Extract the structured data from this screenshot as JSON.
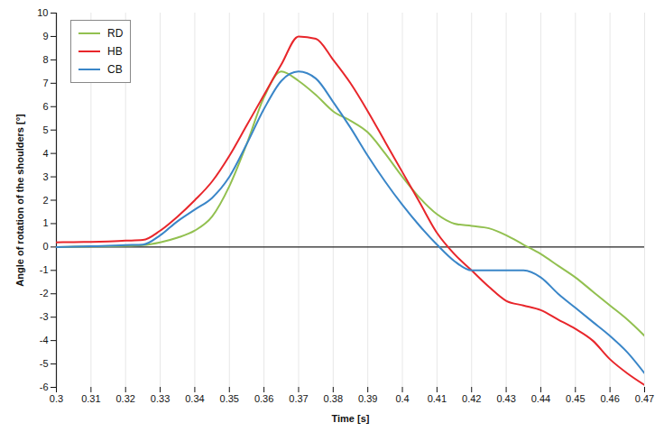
{
  "chart_data": {
    "type": "line",
    "x_label": "Time [s]",
    "y_label": "Angle of rotation of the shoulders [°]",
    "x": [
      0.3,
      0.305,
      0.31,
      0.315,
      0.32,
      0.325,
      0.33,
      0.335,
      0.34,
      0.345,
      0.35,
      0.355,
      0.36,
      0.365,
      0.37,
      0.375,
      0.38,
      0.385,
      0.39,
      0.395,
      0.4,
      0.405,
      0.41,
      0.415,
      0.42,
      0.425,
      0.43,
      0.435,
      0.44,
      0.445,
      0.45,
      0.455,
      0.46,
      0.465,
      0.47
    ],
    "series": [
      {
        "name": "RD",
        "color": "#92c050",
        "values": [
          0.0,
          0.01,
          0.02,
          0.03,
          0.05,
          0.08,
          0.2,
          0.4,
          0.7,
          1.3,
          2.6,
          4.4,
          6.4,
          7.5,
          7.1,
          6.5,
          5.8,
          5.4,
          4.9,
          4.0,
          3.0,
          2.1,
          1.4,
          1.0,
          0.9,
          0.8,
          0.5,
          0.1,
          -0.3,
          -0.8,
          -1.3,
          -1.9,
          -2.5,
          -3.1,
          -3.8
        ]
      },
      {
        "name": "HB",
        "color": "#e8262b",
        "values": [
          0.2,
          0.21,
          0.22,
          0.24,
          0.27,
          0.3,
          0.7,
          1.3,
          2.0,
          2.8,
          3.9,
          5.2,
          6.5,
          7.8,
          9.0,
          8.9,
          8.0,
          7.0,
          5.8,
          4.5,
          3.2,
          1.9,
          0.6,
          -0.3,
          -1.0,
          -1.7,
          -2.3,
          -2.5,
          -2.7,
          -3.1,
          -3.5,
          -4.0,
          -4.8,
          -5.4,
          -5.9
        ]
      },
      {
        "name": "CB",
        "color": "#3a86c8",
        "values": [
          0.0,
          0.01,
          0.03,
          0.05,
          0.08,
          0.1,
          0.5,
          1.1,
          1.6,
          2.1,
          3.0,
          4.4,
          5.9,
          7.1,
          7.5,
          7.2,
          6.2,
          5.1,
          3.9,
          2.8,
          1.8,
          0.9,
          0.1,
          -0.6,
          -1.0,
          -1.0,
          -1.0,
          -1.0,
          -1.3,
          -2.0,
          -2.6,
          -3.2,
          -3.8,
          -4.5,
          -5.4
        ]
      }
    ],
    "xlim": [
      0.3,
      0.47
    ],
    "xticks": [
      0.3,
      0.31,
      0.32,
      0.33,
      0.34,
      0.35,
      0.36,
      0.37,
      0.38,
      0.39,
      0.4,
      0.41,
      0.42,
      0.43,
      0.44,
      0.45,
      0.46,
      0.47
    ],
    "ylim": [
      -6,
      10
    ],
    "yticks": [
      -6,
      -5,
      -4,
      -3,
      -2,
      -1,
      0,
      1,
      2,
      3,
      4,
      5,
      6,
      7,
      8,
      9,
      10
    ],
    "grid": true,
    "legend": "top-left"
  }
}
